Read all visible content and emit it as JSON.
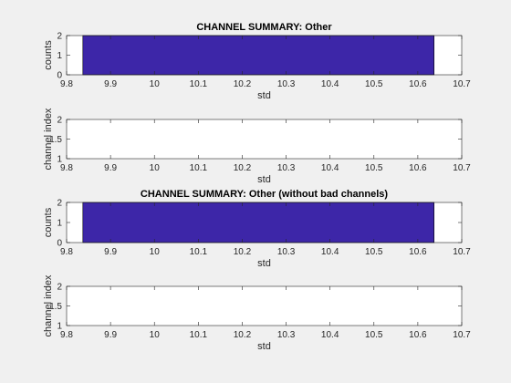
{
  "colors": {
    "bar": "#3d26a8",
    "axis": "#262626",
    "background": "#f0f0f0",
    "plot_bg": "#ffffff"
  },
  "chart_data": [
    {
      "type": "bar",
      "title": "CHANNEL SUMMARY: Other",
      "xlabel": "std",
      "ylabel": "counts",
      "xlim": [
        9.8,
        10.7
      ],
      "ylim": [
        0,
        2
      ],
      "xticks": [
        "9.8",
        "9.9",
        "10",
        "10.1",
        "10.2",
        "10.3",
        "10.4",
        "10.5",
        "10.6",
        "10.7"
      ],
      "yticks": [
        "0",
        "1",
        "2"
      ],
      "bars": [
        {
          "x0": 9.837,
          "x1": 10.637,
          "value": 2
        }
      ]
    },
    {
      "type": "scatter",
      "title": "",
      "xlabel": "std",
      "ylabel": "channel index",
      "xlim": [
        9.8,
        10.7
      ],
      "ylim": [
        1,
        2
      ],
      "xticks": [
        "9.8",
        "9.9",
        "10",
        "10.1",
        "10.2",
        "10.3",
        "10.4",
        "10.5",
        "10.6",
        "10.7"
      ],
      "yticks": [
        "1",
        "1.5",
        "2"
      ],
      "points": []
    },
    {
      "type": "bar",
      "title": "CHANNEL SUMMARY: Other (without bad channels)",
      "xlabel": "std",
      "ylabel": "counts",
      "xlim": [
        9.8,
        10.7
      ],
      "ylim": [
        0,
        2
      ],
      "xticks": [
        "9.8",
        "9.9",
        "10",
        "10.1",
        "10.2",
        "10.3",
        "10.4",
        "10.5",
        "10.6",
        "10.7"
      ],
      "yticks": [
        "0",
        "1",
        "2"
      ],
      "bars": [
        {
          "x0": 9.837,
          "x1": 10.637,
          "value": 2
        }
      ]
    },
    {
      "type": "scatter",
      "title": "",
      "xlabel": "std",
      "ylabel": "channel index",
      "xlim": [
        9.8,
        10.7
      ],
      "ylim": [
        1,
        2
      ],
      "xticks": [
        "9.8",
        "9.9",
        "10",
        "10.1",
        "10.2",
        "10.3",
        "10.4",
        "10.5",
        "10.6",
        "10.7"
      ],
      "yticks": [
        "1",
        "1.5",
        "2"
      ],
      "points": []
    }
  ]
}
